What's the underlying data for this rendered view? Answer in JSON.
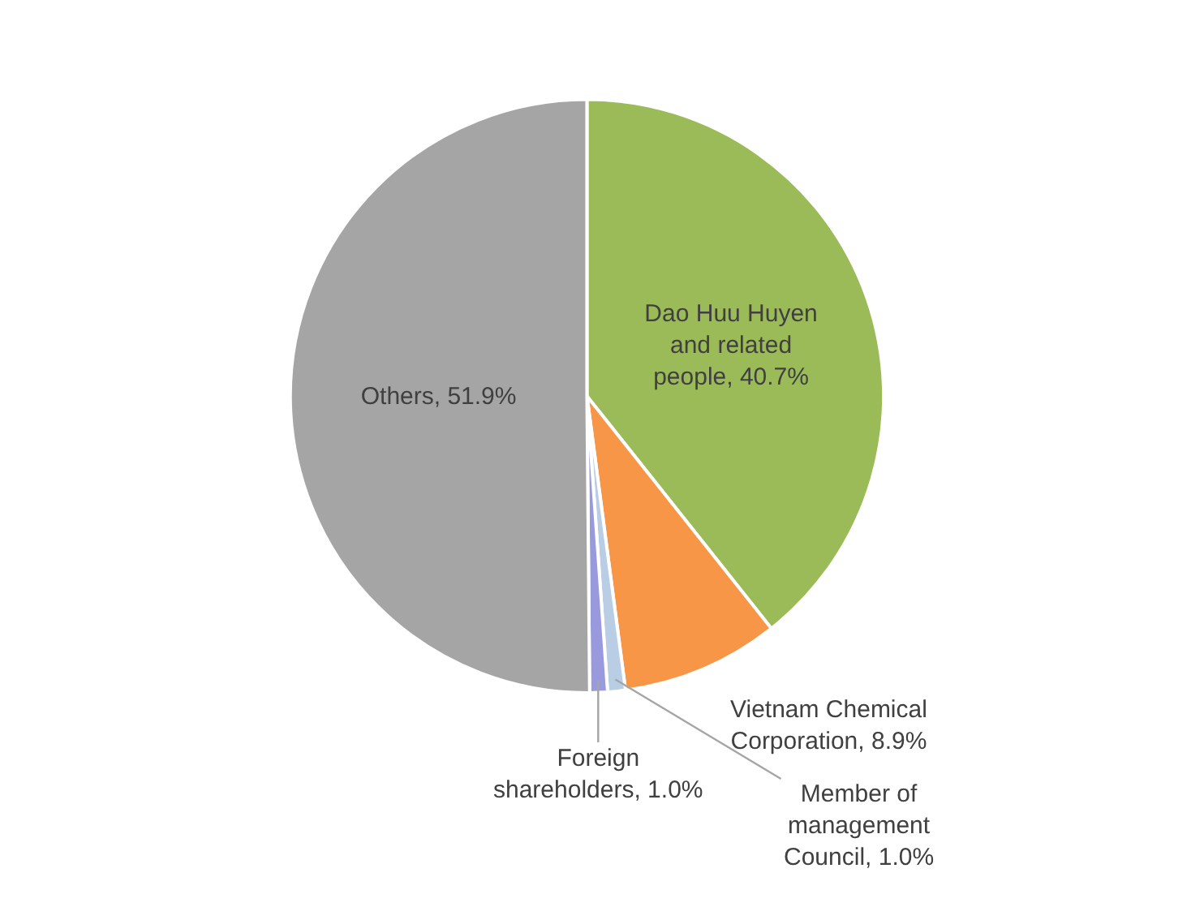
{
  "chart_data": {
    "type": "pie",
    "categories": [
      "Dao Huu Huyen and related people",
      "Vietnam Chemical Corporation",
      "Member of management Council",
      "Foreign shareholders",
      "Others"
    ],
    "values": [
      40.7,
      8.9,
      1.0,
      1.0,
      51.9
    ],
    "value_labels": [
      "40.7%",
      "8.9%",
      "1.0%",
      "1.0%",
      "51.9%"
    ],
    "colors": [
      "#9bbb59",
      "#f79646",
      "#b9cde5",
      "#9999dd",
      "#a5a5a5"
    ],
    "legend": false
  }
}
